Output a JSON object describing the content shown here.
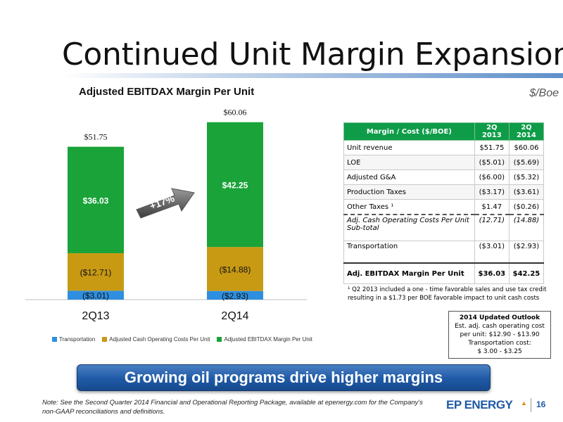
{
  "title": "Continued Unit Margin Expansion",
  "unit_label": "$/Boe",
  "colors": {
    "transportation": "#2e8fe0",
    "cash_costs": "#c89a14",
    "ebitdax": "#19a339",
    "table_header": "#0e9c48",
    "banner": "#1f5aa6",
    "brand": "#1f5aa6"
  },
  "chart_data": {
    "type": "bar",
    "stacked": true,
    "title": "Adjusted EBITDAX Margin Per Unit",
    "categories": [
      "2Q13",
      "2Q14"
    ],
    "totals": [
      51.75,
      60.06
    ],
    "total_labels": [
      "$51.75",
      "$60.06"
    ],
    "series": [
      {
        "name": "Transportation",
        "values": [
          3.01,
          2.93
        ],
        "labels": [
          "($3.01)",
          "($2.93)"
        ]
      },
      {
        "name": "Adjusted Cash Operating Costs Per Unit",
        "values": [
          12.71,
          14.88
        ],
        "labels": [
          "($12.71)",
          "($14.88)"
        ]
      },
      {
        "name": "Adjusted EBITDAX Margin Per Unit",
        "values": [
          36.03,
          42.25
        ],
        "labels": [
          "$36.03",
          "$42.25"
        ]
      }
    ],
    "annotation": "+17%",
    "grid": false,
    "legend_position": "bottom"
  },
  "table": {
    "headers": [
      "Margin / Cost ($/BOE)",
      "2Q 2013",
      "2Q 2014"
    ],
    "rows": [
      {
        "label": "Unit revenue",
        "v1": "$51.75",
        "v2": "$60.06"
      },
      {
        "label": "LOE",
        "v1": "($5.01)",
        "v2": "($5.69)"
      },
      {
        "label": "Adjusted G&A",
        "v1": "($6.00)",
        "v2": "($5.32)"
      },
      {
        "label": "Production Taxes",
        "v1": "($3.17)",
        "v2": "($3.61)"
      },
      {
        "label": "Other Taxes ¹",
        "v1": "$1.47",
        "v2": "($0.26)"
      },
      {
        "label": "Adj. Cash Operating Costs Per Unit Sub-total",
        "v1": "(12.71)",
        "v2": "(14.88)"
      },
      {
        "label": "Transportation",
        "v1": "($3.01)",
        "v2": "($2.93)"
      },
      {
        "label": "Adj. EBITDAX Margin Per Unit",
        "v1": "$36.03",
        "v2": "$42.25"
      }
    ]
  },
  "footnote": "¹ Q2 2013 included a one - time favorable sales and use tax credit resulting in a $1.73 per BOE favorable impact to unit cash costs",
  "outlook": {
    "title": "2014 Updated Outlook",
    "line1": "Est. adj. cash operating cost",
    "line2": "per unit: $12.90 - $13.90",
    "line3": "Transportation cost:",
    "line4": "$ 3.00 - $3.25"
  },
  "banner": "Growing oil programs drive higher margins",
  "note": "Note: See the Second Quarter 2014 Financial and Operational Reporting Package, available at epenergy.com for the Company's non-GAAP reconciliations and definitions.",
  "logo_text": "EP ENERGY",
  "page_number": "16"
}
